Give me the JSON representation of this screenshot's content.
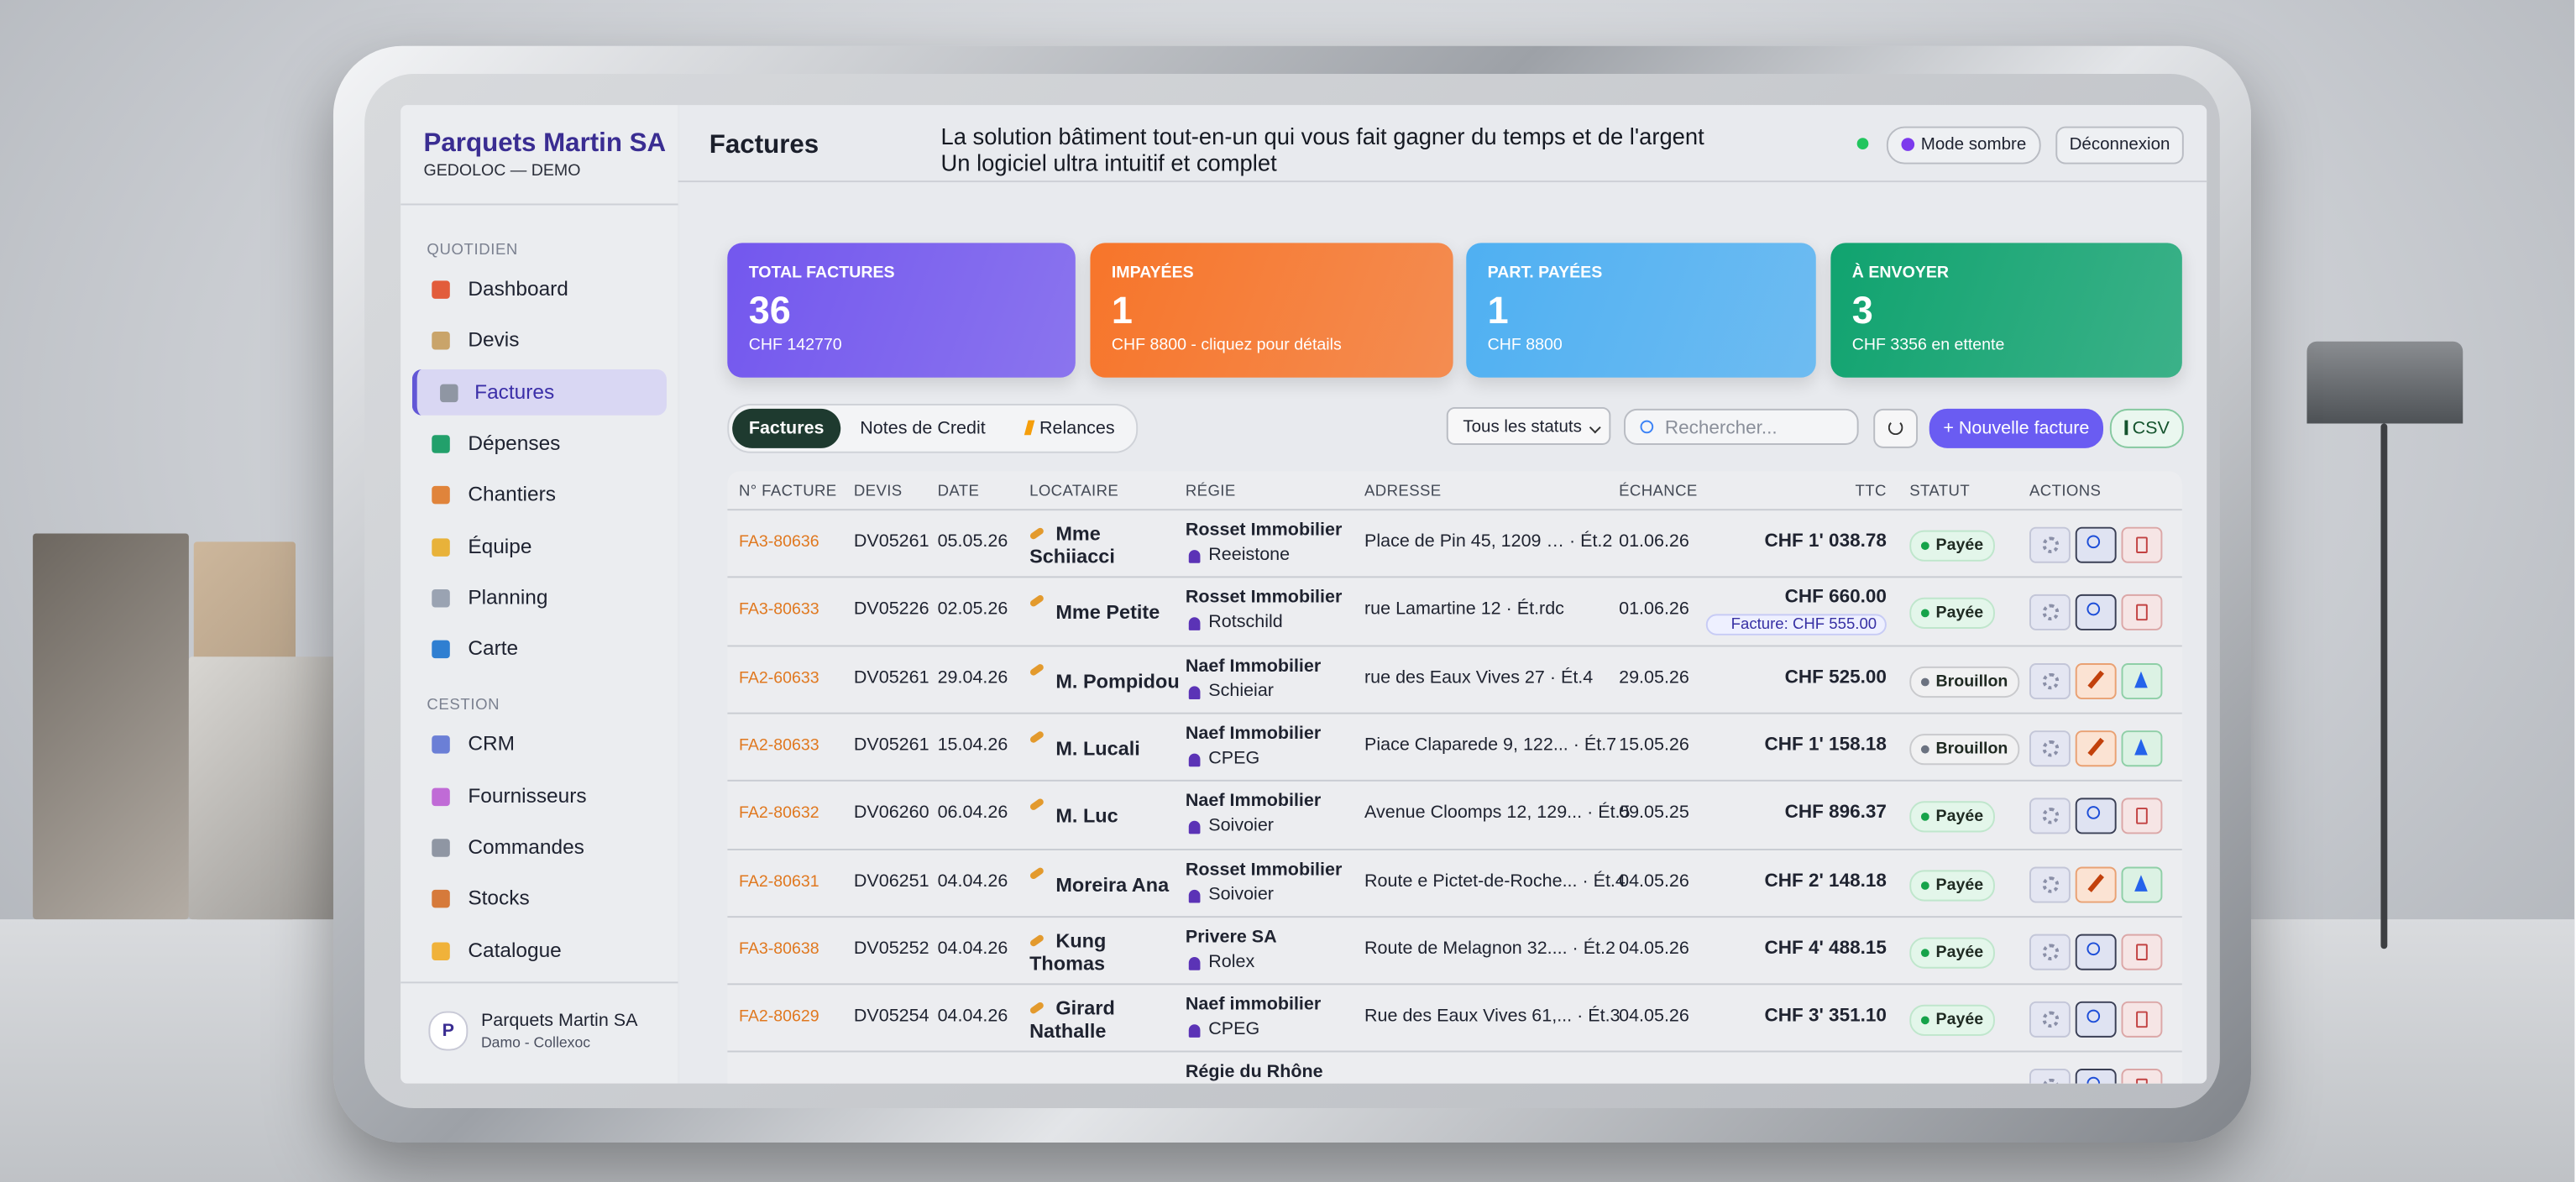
{
  "sidebar": {
    "brand": "Parquets Martin SA",
    "subtitle": "GEDOLOC — DEMO",
    "sections": [
      {
        "title": "QUOTIDIEN",
        "items": [
          "Dashboard",
          "Devis",
          "Factures",
          "Dépenses",
          "Chantiers",
          "Équipe",
          "Planning",
          "Carte"
        ]
      },
      {
        "title": "CESTION",
        "items": [
          "CRM",
          "Fournisseurs",
          "Commandes",
          "Stocks",
          "Catalogue"
        ]
      }
    ],
    "active": {
      "section": 0,
      "item": 2
    },
    "user": {
      "initial": "P",
      "name": "Parquets Martin SA",
      "subtitle": "Damo - Collexoc"
    }
  },
  "header": {
    "title": "Factures",
    "tagline": "La solution bâtiment tout-en-un qui vous fait gagner du temps et de l'argent",
    "subtagline": "Un logiciel ultra intuitif et complet",
    "buttons": [
      "Mode sombre",
      "Déconnexion"
    ]
  },
  "stats": [
    {
      "label": "TOTAL FACTURES",
      "value": 36,
      "detail": "CHF 142770",
      "color": "#7357ee"
    },
    {
      "label": "IMPAYÉES",
      "value": 1,
      "detail": "CHF 8800 - cliquez pour détails",
      "color": "#f7752a"
    },
    {
      "label": "PART. PAYÉES",
      "value": 1,
      "detail": "CHF 8800",
      "color": "#4fb0f2"
    },
    {
      "label": "À ENVOYER",
      "value": 3,
      "detail": "CHF 3356 en ettente",
      "color": "#10a36f"
    }
  ],
  "toolbar": {
    "tabs": [
      "Factures",
      "Notes de Credit",
      "Relances"
    ],
    "active_tab": 0,
    "filter": "Tous les statuts",
    "search": "Rechercher...",
    "new_button": "+ Nouvelle facture",
    "csv_button": "CSV"
  },
  "table": {
    "columns": [
      "N° FACTURE",
      "DEVIS",
      "DATE",
      "LOCATAIRE",
      "RÉGIE",
      "ADRESSE",
      "ÉCHANCE",
      "TTC",
      "STATUT",
      "ACTIONS"
    ],
    "rows": [
      {
        "invoice": "FA3-80636",
        "quote": "DV05261",
        "date": "05.05.26",
        "tenant": "Mme Schiiacci",
        "agency": "Rosset Immobilier",
        "contact": "Reeistone",
        "address": "Place de Pin 45, 1209 … · Ét.2",
        "due": "01.06.26",
        "amount": "CHF 1' 038.78",
        "status": "Payée",
        "status_color": "#16a34a"
      },
      {
        "invoice": "FA3-80633",
        "quote": "DV05226",
        "date": "02.05.26",
        "tenant": "Mme Petite",
        "agency": "Rosset Immobilier",
        "contact": "Rotschild",
        "address": "rue Lamartine 12 · Ét.rdc",
        "due": "01.06.26",
        "amount": "CHF 660.00",
        "note": "Facture: CHF 555.00",
        "status": "Payée",
        "status_color": "#16a34a"
      },
      {
        "invoice": "FA2-60633",
        "quote": "DV05261",
        "date": "29.04.26",
        "tenant": "M. Pompidou",
        "agency": "Naef Immobilier",
        "contact": "Schieiar",
        "address": "rue des Eaux Vives 27 · Ét.4",
        "due": "29.05.26",
        "amount": "CHF 525.00",
        "status": "Brouillon",
        "status_color": "#6b7280"
      },
      {
        "invoice": "FA2-80633",
        "quote": "DV05261",
        "date": "15.04.26",
        "tenant": "M. Lucali",
        "agency": "Naef Immobilier",
        "contact": "CPEG",
        "address": "Piace Claparede 9, 122... · Ét.7",
        "due": "15.05.26",
        "amount": "CHF 1' 158.18",
        "status": "Brouillon",
        "status_color": "#6b7280"
      },
      {
        "invoice": "FA2-80632",
        "quote": "DV06260",
        "date": "06.04.26",
        "tenant": "M. Luc",
        "agency": "Naef Immobilier",
        "contact": "Soivoier",
        "address": "Avenue Cloomps 12, 129... · Ét.5",
        "due": "09.05.25",
        "amount": "CHF 896.37",
        "status": "Payée",
        "status_color": "#16a34a"
      },
      {
        "invoice": "FA2-80631",
        "quote": "DV06251",
        "date": "04.04.26",
        "tenant": "Moreira Ana",
        "agency": "Rosset Immobilier",
        "contact": "Soivoier",
        "address": "Route e Pictet-de-Roche... · Ét.4",
        "due": "04.05.26",
        "amount": "CHF 2' 148.18",
        "status": "Payée",
        "status_color": "#16a34a"
      },
      {
        "invoice": "FA3-80638",
        "quote": "DV05252",
        "date": "04.04.26",
        "tenant": "Kung Thomas",
        "agency": "Privere SA",
        "contact": "Rolex",
        "address": "Route de Melagnon 32.... · Ét.2",
        "due": "04.05.26",
        "amount": "CHF 4' 488.15",
        "status": "Payée",
        "status_color": "#16a34a"
      },
      {
        "invoice": "FA2-80629",
        "quote": "DV05254",
        "date": "04.04.26",
        "tenant": "Girard Nathalle",
        "agency": "Naef immobilier",
        "contact": "CPEG",
        "address": "Rue des Eaux Vives 61,... · Ét.3",
        "due": "04.05.26",
        "amount": "CHF 3' 351.10",
        "status": "Payée",
        "status_color": "#16a34a"
      },
      {
        "agency": "Régie du Rhône"
      }
    ]
  }
}
